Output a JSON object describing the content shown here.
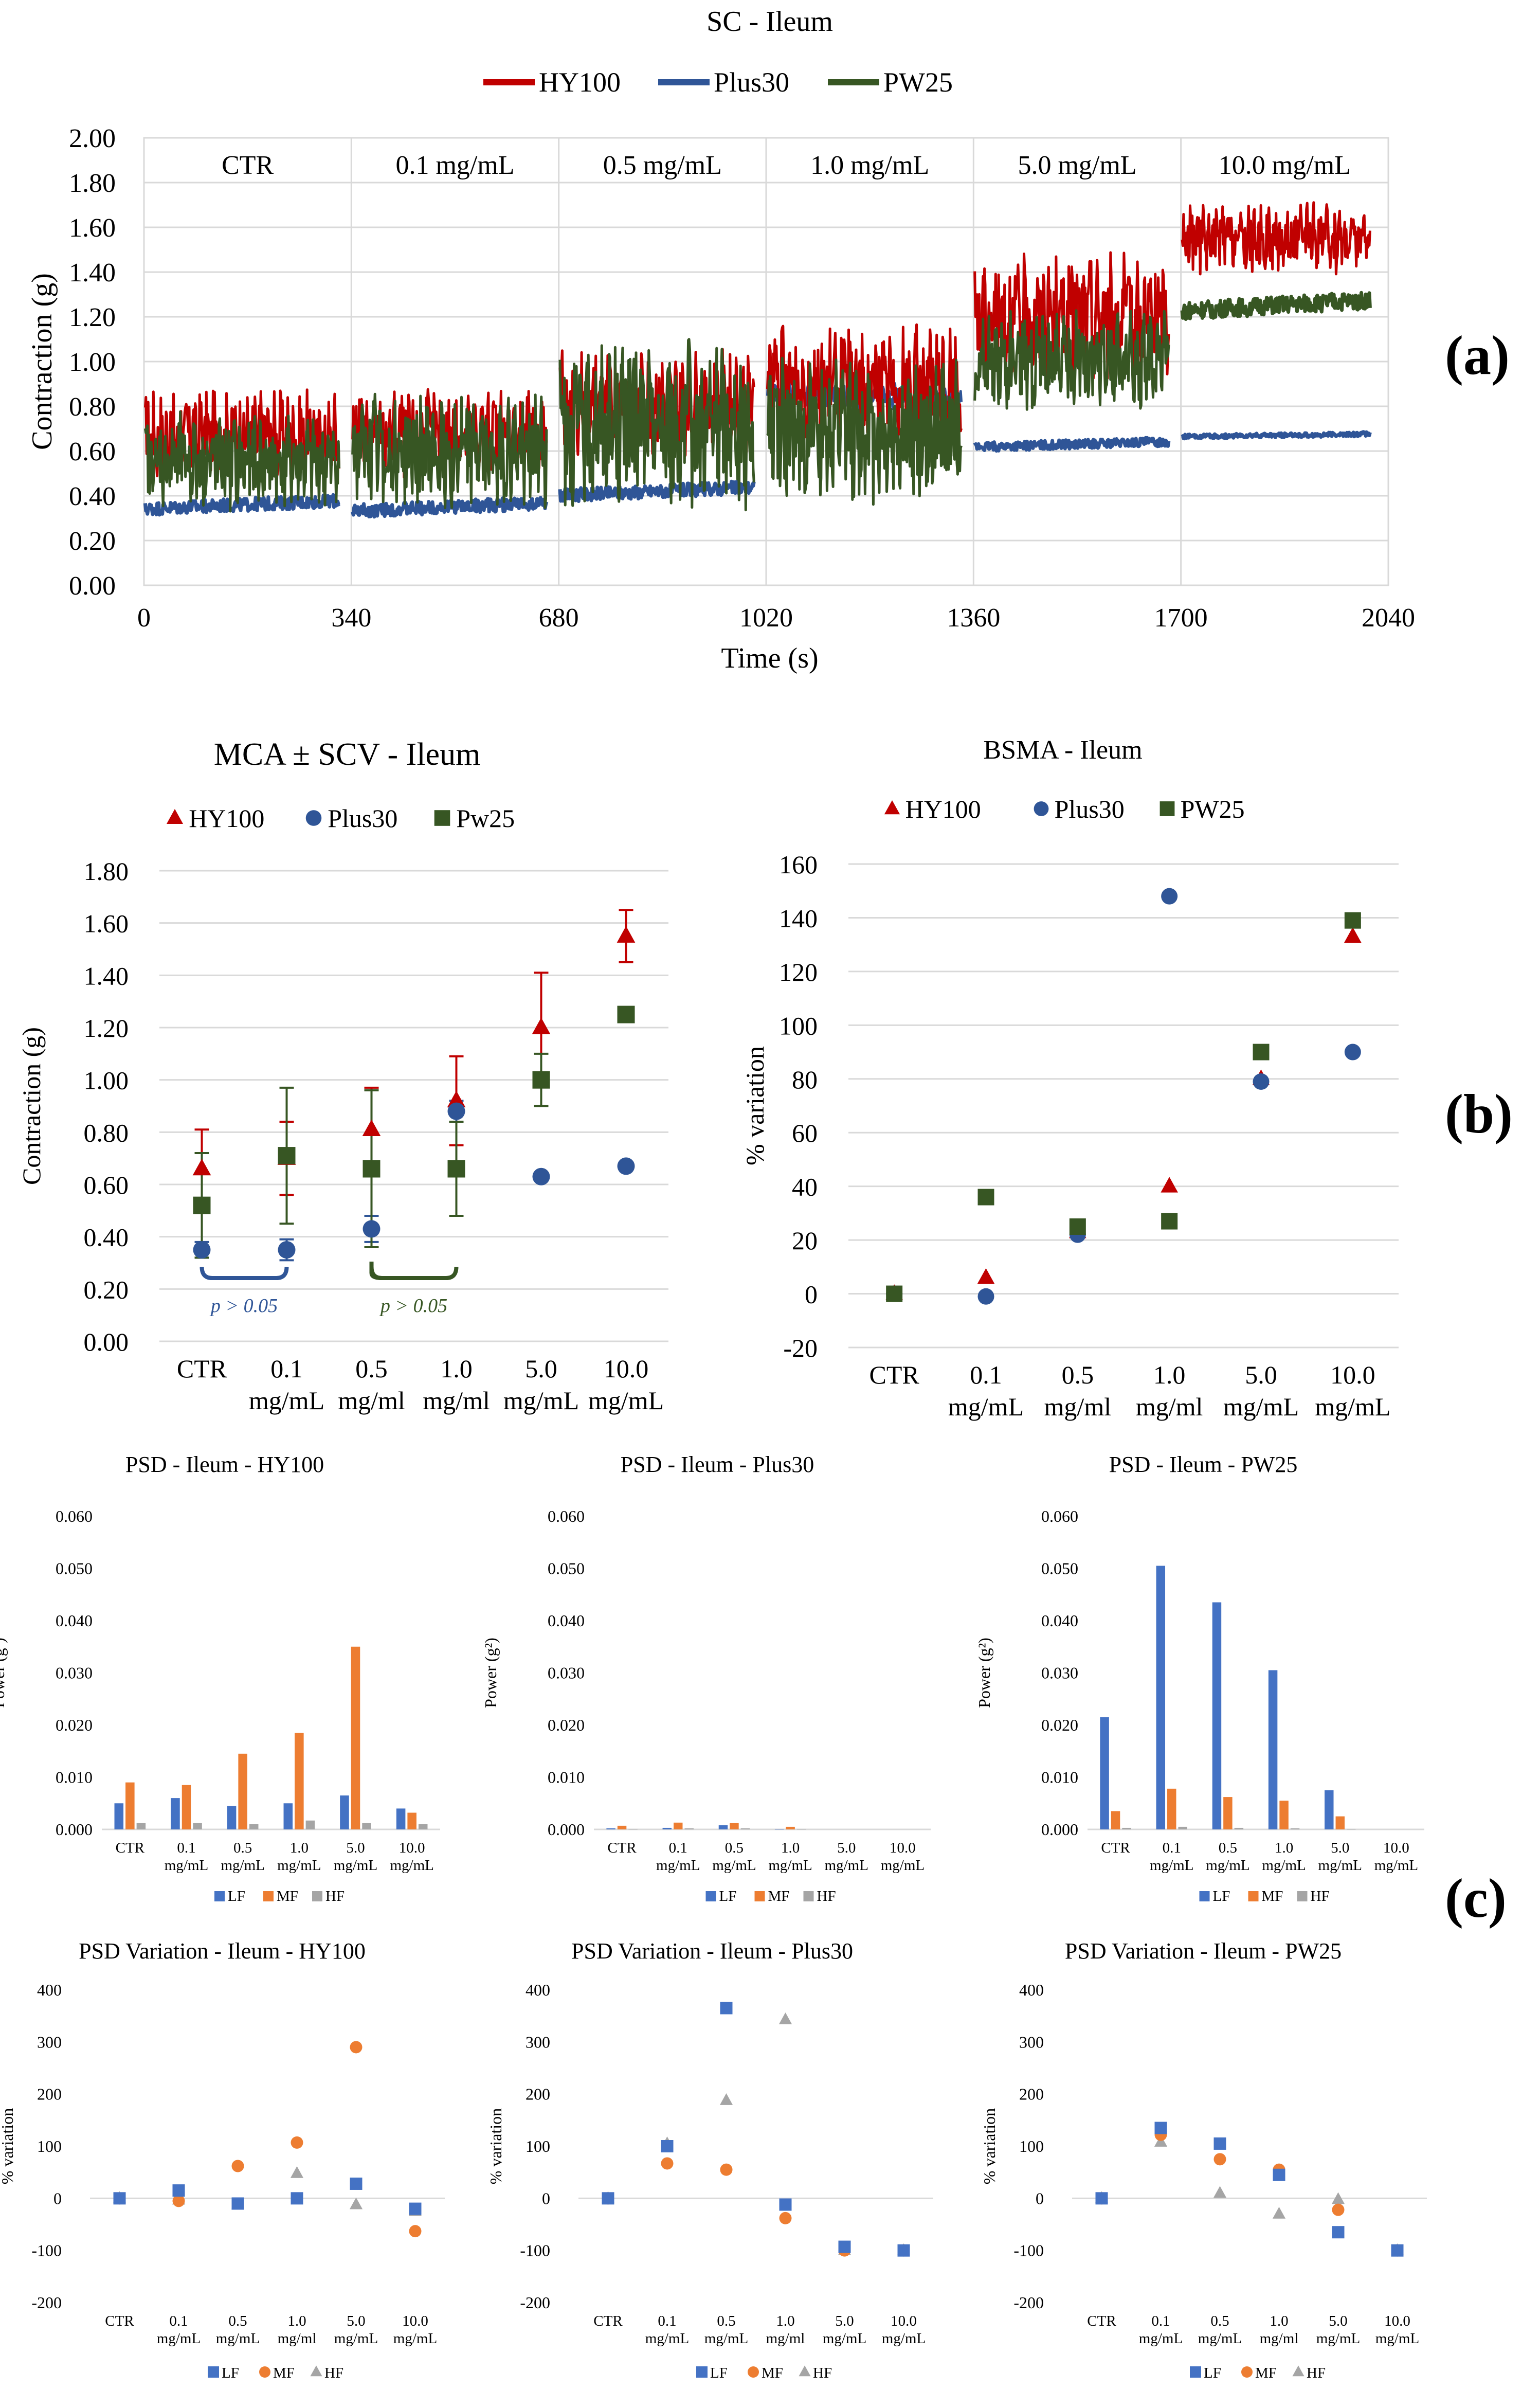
{
  "colors": {
    "hy100": "#c00000",
    "plus30": "#2f5597",
    "pw25": "#375623",
    "lf": "#4472c4",
    "mf": "#ed7d31",
    "hf": "#a5a5a5",
    "sig_blue": "#2f5597",
    "sig_green": "#375623",
    "grid": "#d9d9d9",
    "axis_text": "#000000"
  },
  "labels": {
    "a": "(a)",
    "b": "(b)",
    "c": "(c)"
  },
  "chart_data": [
    {
      "id": "sc_ileum",
      "type": "line",
      "title": "SC - Ileum",
      "xlabel": "Time (s)",
      "ylabel": "Contraction (g)",
      "xlim": [
        0,
        2040
      ],
      "ylim": [
        0,
        2
      ],
      "xticks": [
        "0",
        "340",
        "680",
        "1020",
        "1360",
        "1700",
        "2040"
      ],
      "yticks": [
        "0.00",
        "0.20",
        "0.40",
        "0.60",
        "0.80",
        "1.00",
        "1.20",
        "1.40",
        "1.60",
        "1.80",
        "2.00"
      ],
      "segments": [
        "CTR",
        "0.1 mg/mL",
        "0.5 mg/mL",
        "1.0 mg/mL",
        "5.0 mg/mL",
        "10.0 mg/mL"
      ],
      "legend": [
        "HY100",
        "Plus30",
        "PW25"
      ],
      "series": [
        {
          "name": "HY100",
          "segment_mean": [
            0.67,
            0.68,
            0.82,
            0.9,
            1.2,
            1.55
          ],
          "segment_amp": [
            0.16,
            0.15,
            0.18,
            0.2,
            0.22,
            0.12
          ]
        },
        {
          "name": "Plus30",
          "segment_mean": [
            0.36,
            0.35,
            0.42,
            0.85,
            0.63,
            0.67
          ],
          "segment_amp": [
            0.03,
            0.03,
            0.03,
            0.05,
            0.02,
            0.01
          ]
        },
        {
          "name": "PW25",
          "segment_mean": [
            0.55,
            0.6,
            0.72,
            0.68,
            1.0,
            1.25
          ],
          "segment_amp": [
            0.17,
            0.2,
            0.3,
            0.25,
            0.18,
            0.04
          ]
        }
      ]
    },
    {
      "id": "mca_scv_ileum",
      "type": "scatter",
      "title": "MCA ± SCV - Ileum",
      "ylabel": "Contraction (g)",
      "ylim": [
        0,
        1.8
      ],
      "yticks": [
        "0.00",
        "0.20",
        "0.40",
        "0.60",
        "0.80",
        "1.00",
        "1.20",
        "1.40",
        "1.60",
        "1.80"
      ],
      "categories": [
        [
          "CTR"
        ],
        [
          "0.1",
          "mg/mL"
        ],
        [
          "0.5",
          "mg/ml"
        ],
        [
          "1.0",
          "mg/ml"
        ],
        [
          "5.0",
          "mg/mL"
        ],
        [
          "10.0",
          "mg/mL"
        ]
      ],
      "legend": [
        "HY100",
        "Plus30",
        "Pw25"
      ],
      "series": [
        {
          "name": "HY100",
          "marker": "triangle",
          "values": [
            0.66,
            0.7,
            0.81,
            0.92,
            1.2,
            1.55
          ],
          "errors": [
            0.15,
            0.14,
            0.16,
            0.17,
            0.21,
            0.1
          ]
        },
        {
          "name": "Plus30",
          "marker": "circle",
          "values": [
            0.35,
            0.35,
            0.43,
            0.88,
            0.63,
            0.67
          ],
          "errors": [
            0.03,
            0.04,
            0.05,
            0.04,
            0,
            0
          ]
        },
        {
          "name": "Pw25",
          "marker": "square",
          "values": [
            0.52,
            0.71,
            0.66,
            0.66,
            1.0,
            1.25
          ],
          "errors": [
            0.2,
            0.26,
            0.3,
            0.18,
            0.1,
            0
          ]
        }
      ],
      "annotations": [
        {
          "text": "p > 0.05",
          "from": 0,
          "to": 1,
          "color": "sig_blue"
        },
        {
          "text": "p > 0.05",
          "from": 2,
          "to": 3,
          "color": "sig_green"
        }
      ]
    },
    {
      "id": "bsma_ileum",
      "type": "scatter",
      "title": "BSMA - Ileum",
      "ylabel": "% variation",
      "ylim": [
        -20,
        160
      ],
      "yticks": [
        "-20",
        "0",
        "20",
        "40",
        "60",
        "80",
        "100",
        "120",
        "140",
        "160"
      ],
      "categories": [
        [
          "CTR"
        ],
        [
          "0.1",
          "mg/mL"
        ],
        [
          "0.5",
          "mg/ml"
        ],
        [
          "1.0",
          "mg/ml"
        ],
        [
          "5.0",
          "mg/mL"
        ],
        [
          "10.0",
          "mg/mL"
        ]
      ],
      "legend": [
        "HY100",
        "Plus30",
        "PW25"
      ],
      "series": [
        {
          "name": "HY100",
          "marker": "triangle",
          "values": [
            0,
            6,
            23,
            40,
            80,
            133
          ]
        },
        {
          "name": "Plus30",
          "marker": "circle",
          "values": [
            0,
            -1,
            22,
            148,
            79,
            90
          ]
        },
        {
          "name": "PW25",
          "marker": "square",
          "values": [
            0,
            36,
            25,
            27,
            90,
            139
          ]
        }
      ]
    },
    {
      "id": "psd_hy100",
      "type": "bar",
      "title": "PSD - Ileum - HY100",
      "ylabel": "Power (g²)",
      "ylim": [
        0,
        0.06
      ],
      "yticks": [
        "0.000",
        "0.010",
        "0.020",
        "0.030",
        "0.040",
        "0.050",
        "0.060"
      ],
      "categories": [
        [
          "CTR"
        ],
        [
          "0.1",
          "mg/mL"
        ],
        [
          "0.5",
          "mg/mL"
        ],
        [
          "1.0",
          "mg/mL"
        ],
        [
          "5.0",
          "mg/mL"
        ],
        [
          "10.0",
          "mg/mL"
        ]
      ],
      "legend": [
        "LF",
        "MF",
        "HF"
      ],
      "series": [
        {
          "name": "LF",
          "values": [
            0.005,
            0.006,
            0.0045,
            0.005,
            0.0065,
            0.004
          ]
        },
        {
          "name": "MF",
          "values": [
            0.009,
            0.0085,
            0.0145,
            0.0185,
            0.035,
            0.0032
          ]
        },
        {
          "name": "HF",
          "values": [
            0.0012,
            0.0012,
            0.001,
            0.0017,
            0.0012,
            0.001
          ]
        }
      ]
    },
    {
      "id": "psd_plus30",
      "type": "bar",
      "title": "PSD - Ileum - Plus30",
      "ylabel": "Power (g²)",
      "ylim": [
        0,
        0.06
      ],
      "yticks": [
        "0.000",
        "0.010",
        "0.020",
        "0.030",
        "0.040",
        "0.050",
        "0.060"
      ],
      "categories": [
        [
          "CTR"
        ],
        [
          "0.1",
          "mg/mL"
        ],
        [
          "0.5",
          "mg/mL"
        ],
        [
          "1.0",
          "mg/mL"
        ],
        [
          "5.0",
          "mg/mL"
        ],
        [
          "10.0",
          "mg/mL"
        ]
      ],
      "legend": [
        "LF",
        "MF",
        "HF"
      ],
      "series": [
        {
          "name": "LF",
          "values": [
            0.0002,
            0.0003,
            0.0008,
            0.0001,
            0,
            0
          ]
        },
        {
          "name": "MF",
          "values": [
            0.0007,
            0.0013,
            0.0012,
            0.0005,
            0,
            0
          ]
        },
        {
          "name": "HF",
          "values": [
            0.0001,
            0.0002,
            0.0002,
            0.0001,
            0,
            0
          ]
        }
      ]
    },
    {
      "id": "psd_pw25",
      "type": "bar",
      "title": "PSD - Ileum - PW25",
      "ylabel": "Power (g²)",
      "ylim": [
        0,
        0.06
      ],
      "yticks": [
        "0.000",
        "0.010",
        "0.020",
        "0.030",
        "0.040",
        "0.050",
        "0.060"
      ],
      "categories": [
        [
          "CTR"
        ],
        [
          "0.1",
          "mg/mL"
        ],
        [
          "0.5",
          "mg/mL"
        ],
        [
          "1.0",
          "mg/mL"
        ],
        [
          "5.0",
          "mg/mL"
        ],
        [
          "10.0",
          "mg/mL"
        ]
      ],
      "legend": [
        "LF",
        "MF",
        "HF"
      ],
      "series": [
        {
          "name": "LF",
          "values": [
            0.0215,
            0.0505,
            0.0435,
            0.0305,
            0.0075,
            0
          ]
        },
        {
          "name": "MF",
          "values": [
            0.0035,
            0.0078,
            0.0062,
            0.0055,
            0.0025,
            0
          ]
        },
        {
          "name": "HF",
          "values": [
            0.0003,
            0.0005,
            0.0003,
            0.0002,
            0.0001,
            0
          ]
        }
      ]
    },
    {
      "id": "psdvar_hy100",
      "type": "scatter",
      "title": "PSD Variation - Ileum - HY100",
      "ylabel": "% variation",
      "ylim": [
        -200,
        400
      ],
      "yticks": [
        "-200",
        "-100",
        "0",
        "100",
        "200",
        "300",
        "400"
      ],
      "categories": [
        [
          "CTR"
        ],
        [
          "0.1",
          "mg/mL"
        ],
        [
          "0.5",
          "mg/mL"
        ],
        [
          "1.0",
          "mg/ml"
        ],
        [
          "5.0",
          "mg/mL"
        ],
        [
          "10.0",
          "mg/mL"
        ]
      ],
      "legend": [
        "LF",
        "MF",
        "HF"
      ],
      "series": [
        {
          "name": "LF",
          "marker": "square",
          "values": [
            0,
            15,
            -10,
            0,
            28,
            -20
          ]
        },
        {
          "name": "MF",
          "marker": "circle",
          "values": [
            0,
            -5,
            62,
            107,
            290,
            -63
          ]
        },
        {
          "name": "HF",
          "marker": "triangle",
          "values": [
            0,
            -3,
            -12,
            48,
            -12,
            -25
          ]
        }
      ]
    },
    {
      "id": "psdvar_plus30",
      "type": "scatter",
      "title": "PSD Variation - Ileum - Plus30",
      "ylabel": "% variation",
      "ylim": [
        -200,
        400
      ],
      "yticks": [
        "-200",
        "-100",
        "0",
        "100",
        "200",
        "300",
        "400"
      ],
      "categories": [
        [
          "CTR"
        ],
        [
          "0.1",
          "mg/mL"
        ],
        [
          "0.5",
          "mg/mL"
        ],
        [
          "1.0",
          "mg/ml"
        ],
        [
          "5.0",
          "mg/mL"
        ],
        [
          "10.0",
          "mg/mL"
        ]
      ],
      "legend": [
        "LF",
        "MF",
        "HF"
      ],
      "series": [
        {
          "name": "LF",
          "marker": "square",
          "values": [
            0,
            100,
            365,
            -12,
            -93,
            -100
          ]
        },
        {
          "name": "MF",
          "marker": "circle",
          "values": [
            0,
            67,
            55,
            -38,
            -100,
            -100
          ]
        },
        {
          "name": "HF",
          "marker": "triangle",
          "values": [
            0,
            105,
            188,
            343,
            -100,
            -100
          ]
        }
      ]
    },
    {
      "id": "psdvar_pw25",
      "type": "scatter",
      "title": "PSD Variation - Ileum - PW25",
      "ylabel": "% variation",
      "ylim": [
        -200,
        400
      ],
      "yticks": [
        "-200",
        "-100",
        "0",
        "100",
        "200",
        "300",
        "400"
      ],
      "categories": [
        [
          "CTR"
        ],
        [
          "0.1",
          "mg/mL"
        ],
        [
          "0.5",
          "mg/mL"
        ],
        [
          "1.0",
          "mg/ml"
        ],
        [
          "5.0",
          "mg/mL"
        ],
        [
          "10.0",
          "mg/mL"
        ]
      ],
      "legend": [
        "LF",
        "MF",
        "HF"
      ],
      "series": [
        {
          "name": "LF",
          "marker": "square",
          "values": [
            0,
            135,
            105,
            45,
            -65,
            -100
          ]
        },
        {
          "name": "MF",
          "marker": "circle",
          "values": [
            0,
            122,
            75,
            55,
            -22,
            -100
          ]
        },
        {
          "name": "HF",
          "marker": "triangle",
          "values": [
            0,
            108,
            10,
            -30,
            -2,
            -100
          ]
        }
      ]
    }
  ]
}
